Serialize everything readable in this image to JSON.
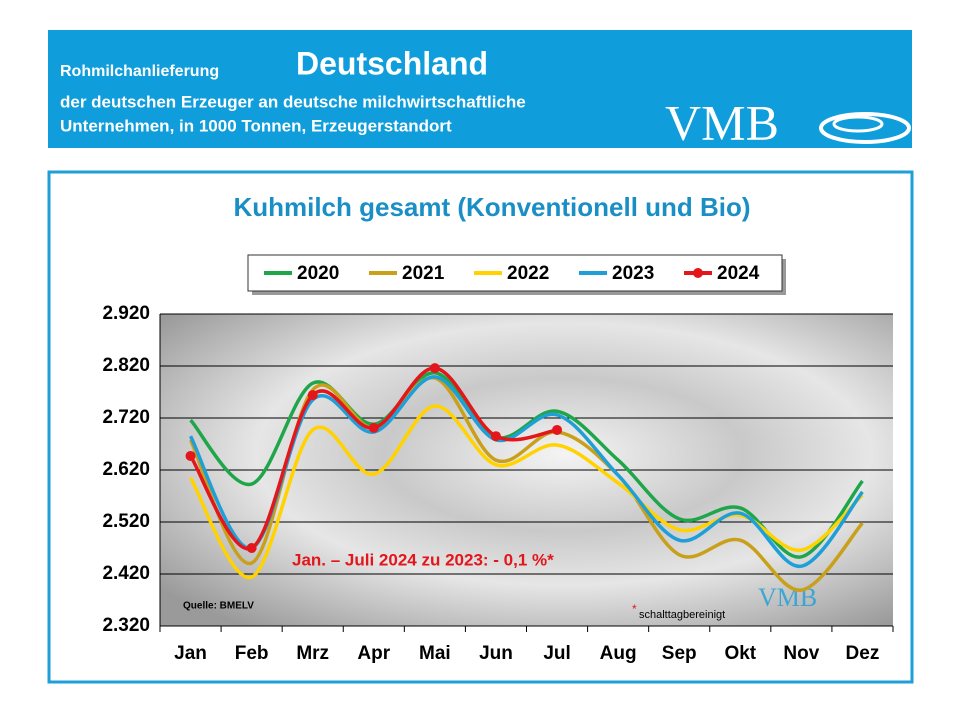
{
  "header": {
    "line1a": "Rohmilchanlieferung",
    "line1b": "Deutschland",
    "line2": "der deutschen Erzeuger an deutsche milchwirtschaftliche",
    "line3": "Unternehmen, in 1000 Tonnen, Erzeugerstandort",
    "logo": "VMB"
  },
  "chart_data": {
    "type": "line",
    "title": "Kuhmilch gesamt (Konventionell und Bio)",
    "categories": [
      "Jan",
      "Feb",
      "Mrz",
      "Apr",
      "Mai",
      "Jun",
      "Jul",
      "Aug",
      "Sep",
      "Okt",
      "Nov",
      "Dez"
    ],
    "series": [
      {
        "name": "2020",
        "color": "#1fa64a",
        "values": [
          2716,
          2593,
          2787,
          2708,
          2807,
          2683,
          2733,
          2639,
          2526,
          2547,
          2453,
          2599
        ]
      },
      {
        "name": "2021",
        "color": "#c9a01a",
        "values": [
          2678,
          2441,
          2774,
          2701,
          2797,
          2639,
          2693,
          2610,
          2457,
          2485,
          2389,
          2518
        ]
      },
      {
        "name": "2022",
        "color": "#ffd200",
        "values": [
          2605,
          2414,
          2697,
          2612,
          2743,
          2630,
          2668,
          2595,
          2505,
          2533,
          2466,
          2572
        ]
      },
      {
        "name": "2023",
        "color": "#1e9fd8",
        "values": [
          2685,
          2470,
          2755,
          2693,
          2799,
          2678,
          2726,
          2610,
          2485,
          2537,
          2435,
          2578
        ]
      },
      {
        "name": "2024",
        "color": "#e3161b",
        "values": [
          2647,
          2470,
          2764,
          2701,
          2816,
          2685,
          2697,
          null,
          null,
          null,
          null,
          null
        ],
        "markers": true
      }
    ],
    "ylim": [
      2320,
      2920
    ],
    "yticks": [
      {
        "value": 2320,
        "label": "2.320"
      },
      {
        "value": 2420,
        "label": "2.420"
      },
      {
        "value": 2520,
        "label": "2.520"
      },
      {
        "value": 2620,
        "label": "2.620"
      },
      {
        "value": 2720,
        "label": "2.720"
      },
      {
        "value": 2820,
        "label": "2.820"
      },
      {
        "value": 2920,
        "label": "2.920"
      }
    ],
    "grid": true,
    "annotation": "Jan. – Juli 2024 zu 2023: - 0,1 %*",
    "source": "Quelle:  BMELV",
    "footnote_marker": "*",
    "footnote": "schalttagbereinigt"
  }
}
